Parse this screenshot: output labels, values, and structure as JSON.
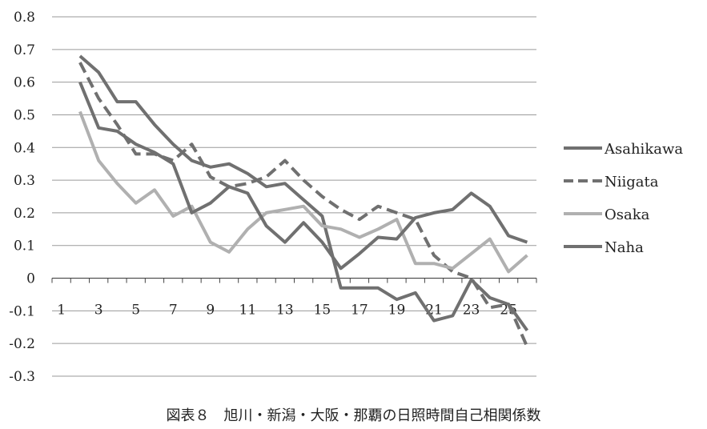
{
  "caption": "図表８　旭川・新潟・大阪・那覇の日照時間自己相関係数",
  "chart_data": {
    "type": "line",
    "title": "",
    "xlabel": "",
    "ylabel": "",
    "ylim": [
      -0.3,
      0.8
    ],
    "yticks": [
      "0.8",
      "0.7",
      "0.6",
      "0.5",
      "0.4",
      "0.3",
      "0.2",
      "0.1",
      "0",
      "-0.1",
      "-0.2",
      "-0.3"
    ],
    "x": [
      2,
      3,
      4,
      5,
      6,
      7,
      8,
      9,
      10,
      11,
      12,
      13,
      14,
      15,
      16,
      17,
      18,
      19,
      20,
      21,
      22,
      23,
      24,
      25,
      26
    ],
    "xtick_labels": [
      "1",
      "3",
      "5",
      "7",
      "9",
      "11",
      "13",
      "15",
      "17",
      "19",
      "21",
      "23",
      "25"
    ],
    "grid": "horizontal",
    "legend_position": "right",
    "series": [
      {
        "name": "Asahikawa",
        "style": "solid",
        "color": "#707070",
        "values": [
          0.68,
          0.63,
          0.54,
          0.54,
          0.47,
          0.41,
          0.36,
          0.34,
          0.35,
          0.32,
          0.28,
          0.29,
          0.24,
          0.19,
          -0.03,
          -0.03,
          -0.03,
          -0.065,
          -0.045,
          -0.13,
          -0.115,
          -0.005,
          -0.06,
          -0.08,
          -0.16
        ]
      },
      {
        "name": "Niigata",
        "style": "dashed",
        "color": "#707070",
        "values": [
          0.66,
          0.55,
          0.47,
          0.38,
          0.38,
          0.36,
          0.41,
          0.31,
          0.28,
          0.29,
          0.31,
          0.36,
          0.3,
          0.25,
          0.21,
          0.18,
          0.22,
          0.2,
          0.18,
          0.07,
          0.02,
          0.0,
          -0.09,
          -0.08,
          -0.21
        ]
      },
      {
        "name": "Osaka",
        "style": "solid",
        "color": "#b0b0b0",
        "values": [
          0.51,
          0.36,
          0.29,
          0.23,
          0.27,
          0.19,
          0.22,
          0.11,
          0.08,
          0.15,
          0.2,
          0.21,
          0.22,
          0.16,
          0.15,
          0.125,
          0.15,
          0.18,
          0.045,
          0.045,
          0.03,
          0.075,
          0.12,
          0.02,
          0.07
        ]
      },
      {
        "name": "Naha",
        "style": "solid",
        "color": "#707070",
        "values": [
          0.6,
          0.46,
          0.45,
          0.41,
          0.385,
          0.35,
          0.2,
          0.23,
          0.28,
          0.26,
          0.16,
          0.11,
          0.17,
          0.11,
          0.03,
          0.075,
          0.125,
          0.12,
          0.185,
          0.2,
          0.21,
          0.26,
          0.22,
          0.13,
          0.11
        ]
      }
    ]
  }
}
